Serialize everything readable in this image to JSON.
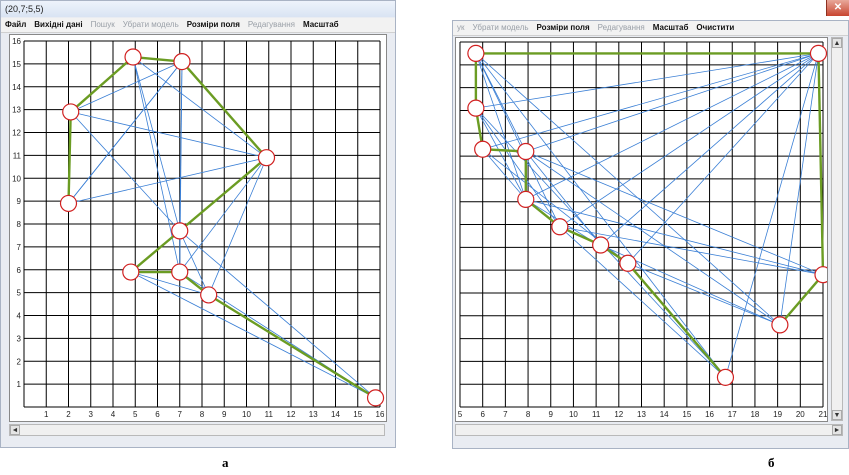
{
  "window_a": {
    "title": "(20,7;5,5)",
    "menu": [
      {
        "label": "Файл",
        "enabled": true
      },
      {
        "label": "Вихідні дані",
        "enabled": true
      },
      {
        "label": "Пошук",
        "enabled": false
      },
      {
        "label": "Убрати модель",
        "enabled": false
      },
      {
        "label": "Розміри поля",
        "enabled": true
      },
      {
        "label": "Редагування",
        "enabled": false
      },
      {
        "label": "Масштаб",
        "enabled": true
      }
    ],
    "x_ticks": [
      "1",
      "2",
      "3",
      "4",
      "5",
      "6",
      "7",
      "8",
      "9",
      "10",
      "11",
      "12",
      "13",
      "14",
      "15",
      "16"
    ],
    "y_ticks": [
      "1",
      "2",
      "3",
      "4",
      "5",
      "6",
      "7",
      "8",
      "9",
      "10",
      "11",
      "12",
      "13",
      "14",
      "15",
      "16"
    ],
    "nodes": [
      {
        "x": 4.9,
        "y": 15.3
      },
      {
        "x": 7.1,
        "y": 15.1
      },
      {
        "x": 2.1,
        "y": 12.9
      },
      {
        "x": 10.9,
        "y": 10.9
      },
      {
        "x": 2.0,
        "y": 8.9
      },
      {
        "x": 7.0,
        "y": 7.7
      },
      {
        "x": 4.8,
        "y": 5.9
      },
      {
        "x": 7.0,
        "y": 5.9
      },
      {
        "x": 8.3,
        "y": 4.9
      },
      {
        "x": 15.8,
        "y": 0.4
      }
    ],
    "path": [
      [
        4,
        2
      ],
      [
        2,
        0
      ],
      [
        0,
        1
      ],
      [
        1,
        3
      ],
      [
        3,
        5
      ],
      [
        5,
        6
      ],
      [
        6,
        7
      ],
      [
        7,
        8
      ],
      [
        8,
        9
      ]
    ],
    "links": [
      [
        0,
        2
      ],
      [
        0,
        3
      ],
      [
        0,
        5
      ],
      [
        1,
        2
      ],
      [
        1,
        4
      ],
      [
        1,
        5
      ],
      [
        1,
        7
      ],
      [
        2,
        3
      ],
      [
        2,
        5
      ],
      [
        3,
        4
      ],
      [
        3,
        6
      ],
      [
        3,
        7
      ],
      [
        3,
        8
      ],
      [
        4,
        1
      ],
      [
        5,
        7
      ],
      [
        5,
        8
      ],
      [
        6,
        8
      ],
      [
        6,
        9
      ],
      [
        7,
        9
      ],
      [
        5,
        9
      ],
      [
        0,
        7
      ]
    ],
    "caption": "а"
  },
  "window_b": {
    "menu": [
      {
        "label": "ук",
        "enabled": false
      },
      {
        "label": "Убрати модель",
        "enabled": false
      },
      {
        "label": "Розміри поля",
        "enabled": true
      },
      {
        "label": "Редагування",
        "enabled": false
      },
      {
        "label": "Масштаб",
        "enabled": true
      },
      {
        "label": "Очистити",
        "enabled": true
      }
    ],
    "x_ticks": [
      "5",
      "6",
      "7",
      "8",
      "9",
      "10",
      "11",
      "12",
      "13",
      "14",
      "15",
      "16",
      "17",
      "18",
      "19",
      "20",
      "21"
    ],
    "nodes": [
      {
        "x": 5.7,
        "y": 15.5
      },
      {
        "x": 20.8,
        "y": 15.5
      },
      {
        "x": 5.7,
        "y": 13.1
      },
      {
        "x": 6.0,
        "y": 11.3
      },
      {
        "x": 7.9,
        "y": 11.2
      },
      {
        "x": 7.9,
        "y": 9.1
      },
      {
        "x": 9.4,
        "y": 7.9
      },
      {
        "x": 11.2,
        "y": 7.1
      },
      {
        "x": 12.4,
        "y": 6.3
      },
      {
        "x": 21.0,
        "y": 5.8
      },
      {
        "x": 19.1,
        "y": 3.6
      },
      {
        "x": 16.7,
        "y": 1.3
      }
    ],
    "path": [
      [
        0,
        1
      ],
      [
        1,
        9
      ],
      [
        9,
        10
      ],
      [
        0,
        2
      ],
      [
        2,
        3
      ],
      [
        3,
        4
      ],
      [
        4,
        5
      ],
      [
        5,
        6
      ],
      [
        6,
        7
      ],
      [
        7,
        8
      ],
      [
        8,
        11
      ]
    ],
    "links": [
      [
        0,
        4
      ],
      [
        0,
        5
      ],
      [
        0,
        6
      ],
      [
        0,
        10
      ],
      [
        0,
        11
      ],
      [
        1,
        2
      ],
      [
        1,
        3
      ],
      [
        1,
        4
      ],
      [
        1,
        5
      ],
      [
        1,
        6
      ],
      [
        1,
        7
      ],
      [
        1,
        8
      ],
      [
        1,
        10
      ],
      [
        1,
        11
      ],
      [
        2,
        5
      ],
      [
        2,
        6
      ],
      [
        3,
        5
      ],
      [
        3,
        8
      ],
      [
        4,
        7
      ],
      [
        4,
        9
      ],
      [
        4,
        10
      ],
      [
        5,
        8
      ],
      [
        5,
        9
      ],
      [
        6,
        9
      ],
      [
        6,
        11
      ],
      [
        7,
        10
      ],
      [
        8,
        10
      ],
      [
        2,
        11
      ]
    ],
    "caption": "б"
  }
}
